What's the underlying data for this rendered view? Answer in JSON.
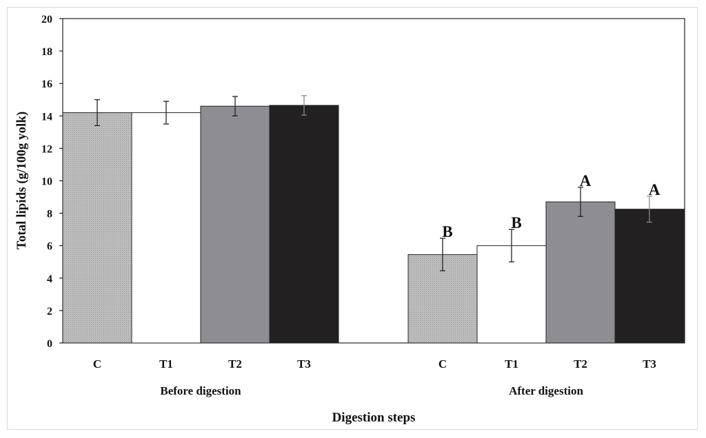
{
  "chart_data": {
    "type": "bar",
    "ylabel": "Total lipids (g/100g  yolk)",
    "xlabel": "Digestion steps",
    "ylim": [
      0,
      20
    ],
    "yticks": [
      "0",
      "2",
      "4",
      "6",
      "8",
      "10",
      "12",
      "14",
      "16",
      "18",
      "20"
    ],
    "grid": false,
    "colors": {
      "C": "#b4b4b4",
      "T1": "#ffffff",
      "T2": "#8e8e92",
      "T3": "#222021"
    },
    "groups": [
      {
        "label": "Before digestion",
        "bars": [
          {
            "category": "C",
            "value": 14.2,
            "error": 0.8,
            "sig": ""
          },
          {
            "category": "T1",
            "value": 14.2,
            "error": 0.7,
            "sig": ""
          },
          {
            "category": "T2",
            "value": 14.6,
            "error": 0.6,
            "sig": ""
          },
          {
            "category": "T3",
            "value": 14.65,
            "error": 0.6,
            "sig": ""
          }
        ]
      },
      {
        "label": "After digestion",
        "bars": [
          {
            "category": "C",
            "value": 5.45,
            "error": 1.0,
            "sig": "B"
          },
          {
            "category": "T1",
            "value": 6.0,
            "error": 1.0,
            "sig": "B"
          },
          {
            "category": "T2",
            "value": 8.7,
            "error": 0.9,
            "sig": "A"
          },
          {
            "category": "T3",
            "value": 8.25,
            "error": 0.8,
            "sig": "A"
          }
        ]
      }
    ]
  }
}
